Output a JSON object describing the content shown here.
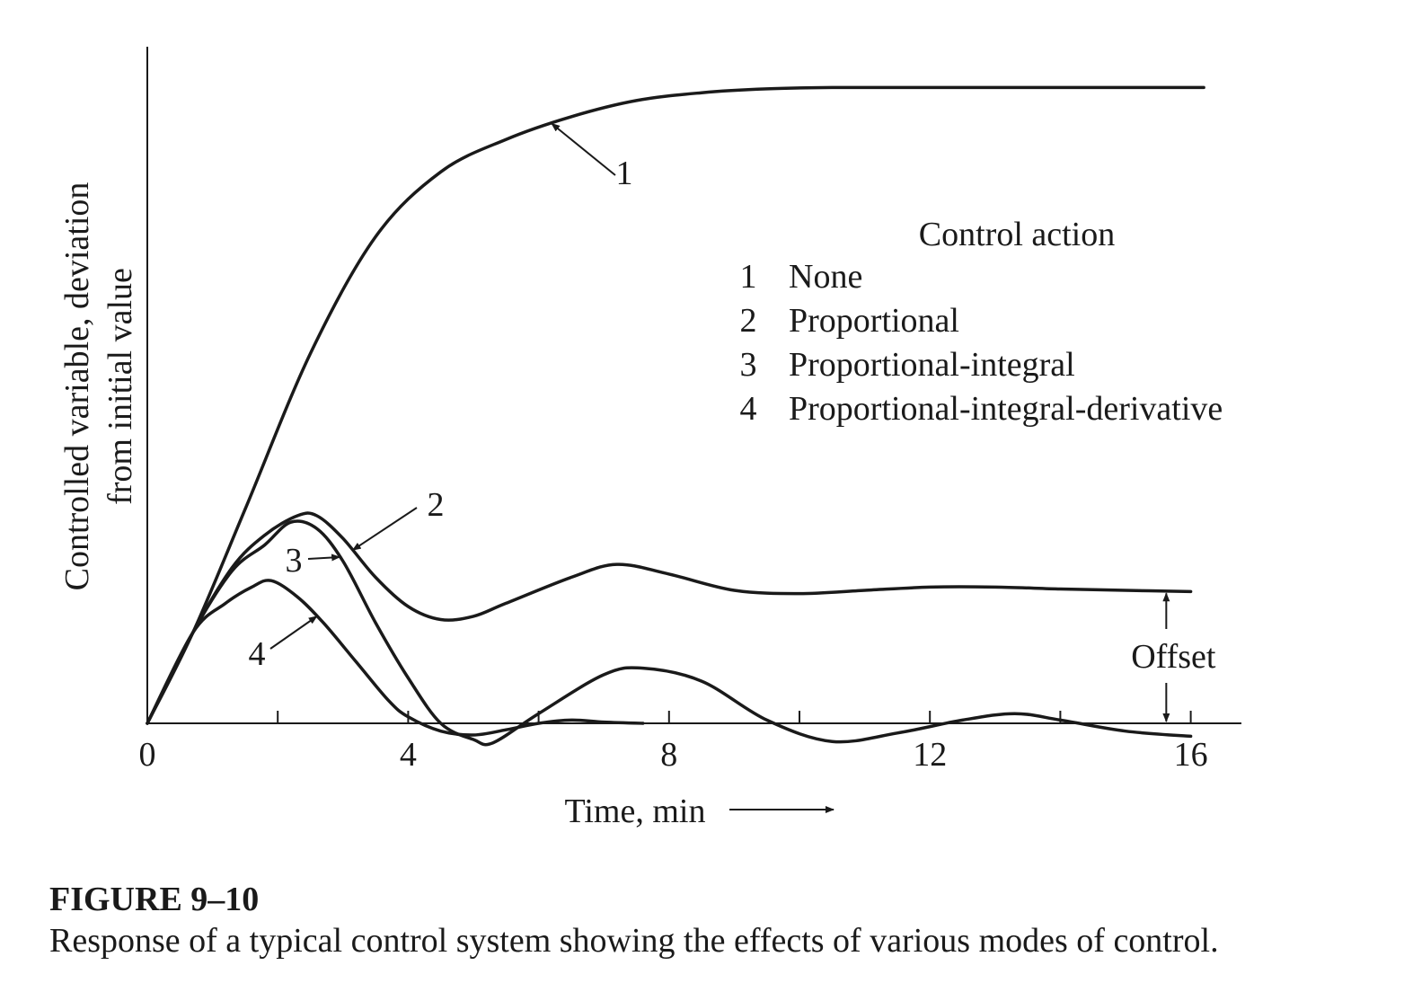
{
  "chart_data": {
    "type": "line",
    "xlabel": "Time, min",
    "ylabel_lines": [
      "Controlled variable, deviation",
      "from initial value"
    ],
    "xlim": [
      0,
      16.6
    ],
    "ylim": [
      -0.35,
      10
    ],
    "x_ticks": [
      0,
      4,
      8,
      12,
      16
    ],
    "minor_ticks": [
      2,
      6,
      10,
      14
    ],
    "grid": false,
    "legend": {
      "title": "Control action",
      "placement": "top-right",
      "entries": [
        {
          "num": "1",
          "label": "None"
        },
        {
          "num": "2",
          "label": "Proportional"
        },
        {
          "num": "3",
          "label": "Proportional-integral"
        },
        {
          "num": "4",
          "label": "Proportional-integral-derivative"
        }
      ]
    },
    "series": [
      {
        "name": "1",
        "x": [
          0,
          0.7,
          1.5,
          2.5,
          3.5,
          4.5,
          5.5,
          6.5,
          7.5,
          8.5,
          9.5,
          10.5,
          12,
          14,
          16.2
        ],
        "y": [
          0,
          1.4,
          3.3,
          5.7,
          7.5,
          8.5,
          9.0,
          9.35,
          9.6,
          9.72,
          9.78,
          9.8,
          9.8,
          9.8,
          9.8
        ]
      },
      {
        "name": "2",
        "x": [
          0,
          0.7,
          1.3,
          1.8,
          2.3,
          2.6,
          3.0,
          3.5,
          4.0,
          4.5,
          5.0,
          5.5,
          6.5,
          7.2,
          8.0,
          9.0,
          10.0,
          11.0,
          12.0,
          13.0,
          14.0,
          15.0,
          16.0
        ],
        "y": [
          0,
          1.4,
          2.4,
          2.9,
          3.2,
          3.2,
          2.85,
          2.25,
          1.8,
          1.6,
          1.65,
          1.85,
          2.25,
          2.45,
          2.3,
          2.05,
          2.0,
          2.05,
          2.1,
          2.1,
          2.07,
          2.05,
          2.03
        ]
      },
      {
        "name": "3",
        "x": [
          0,
          0.7,
          1.3,
          1.8,
          2.2,
          2.6,
          3.0,
          3.5,
          4.0,
          4.5,
          5.0,
          5.3,
          6.0,
          7.0,
          7.6,
          8.5,
          9.5,
          10.5,
          11.5,
          12.5,
          13.3,
          14.0,
          15.0,
          16.0
        ],
        "y": [
          0,
          1.4,
          2.35,
          2.75,
          3.1,
          3.0,
          2.5,
          1.55,
          0.7,
          0.0,
          -0.25,
          -0.3,
          0.15,
          0.75,
          0.85,
          0.65,
          0.05,
          -0.28,
          -0.15,
          0.05,
          0.15,
          0.05,
          -0.12,
          -0.2
        ]
      },
      {
        "name": "4",
        "x": [
          0,
          0.7,
          1.2,
          1.6,
          1.9,
          2.3,
          2.7,
          3.2,
          3.7,
          4.0,
          4.5,
          5.0,
          5.5,
          6.0,
          6.5,
          7.0,
          7.6
        ],
        "y": [
          0,
          1.4,
          1.85,
          2.1,
          2.2,
          1.95,
          1.55,
          0.95,
          0.35,
          0.1,
          -0.12,
          -0.18,
          -0.1,
          0.0,
          0.05,
          0.02,
          0.0
        ]
      }
    ],
    "annotations": [
      {
        "text": "1",
        "target_series": "1",
        "target_x": 6.2
      },
      {
        "text": "2",
        "target_series": "2",
        "target_x": 3.15
      },
      {
        "text": "3",
        "target_series": "3",
        "target_x": 2.95
      },
      {
        "text": "4",
        "target_series": "4",
        "target_x": 2.6
      },
      {
        "text": "Offset",
        "between": [
          "2",
          "x-axis"
        ],
        "at_x": 15.9
      }
    ]
  },
  "caption": {
    "label": "FIGURE 9–10",
    "text": "Response of a typical control system showing the effects of various modes of control."
  },
  "style": {
    "ink": "#1a1a1a",
    "background": "#ffffff"
  }
}
